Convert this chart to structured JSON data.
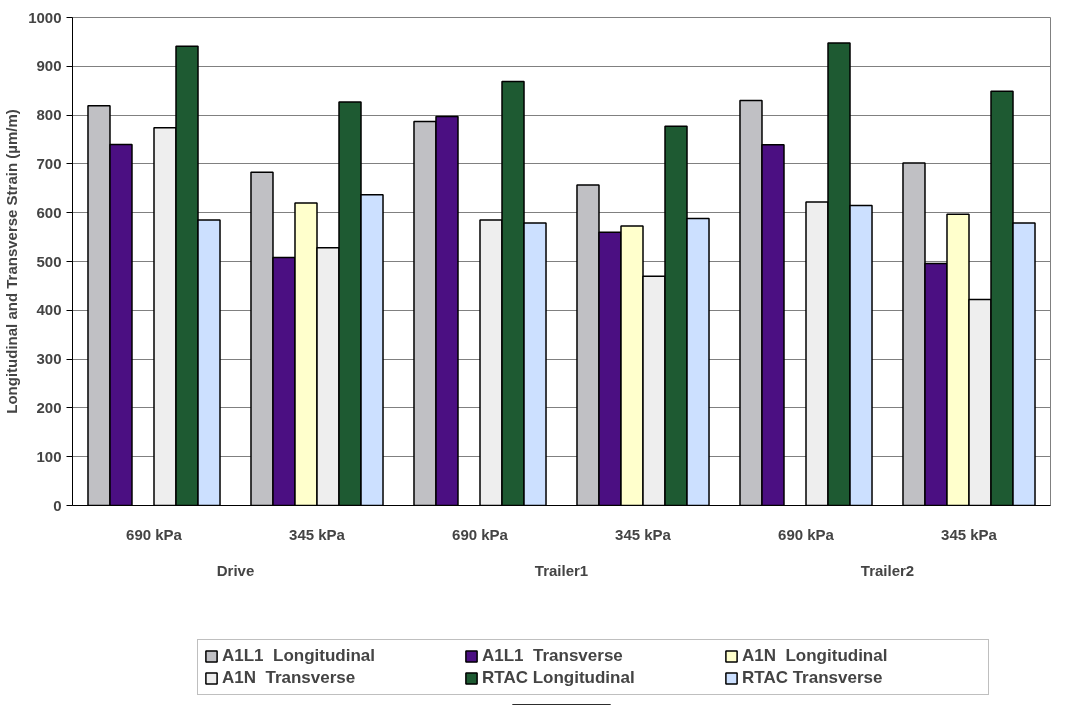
{
  "chart_data": {
    "type": "bar",
    "ylabel": "Longitudinal and Transverse Strain (µm/m)",
    "categories": [
      "690 kPa",
      "345 kPa",
      "690 kPa",
      "345 kPa",
      "690 kPa",
      "345 kPa"
    ],
    "annotations": [
      "Drive",
      "Trailer1",
      "Trailer2"
    ],
    "ylim": [
      0,
      1000
    ],
    "yticks": [
      0,
      100,
      200,
      300,
      400,
      500,
      600,
      700,
      800,
      900,
      1000
    ],
    "grid": "y",
    "legend": "bottom",
    "series": [
      {
        "name": "A1L1  Longitudinal",
        "color": "#c0c0c4",
        "values": [
          819,
          683,
          787,
          657,
          830,
          702
        ]
      },
      {
        "name": "A1L1  Transverse",
        "color": "#4b0f82",
        "values": [
          740,
          508,
          797,
          560,
          739,
          496
        ]
      },
      {
        "name": "A1N  Longitudinal",
        "color": "#ffffcc",
        "values": [
          null,
          620,
          null,
          573,
          null,
          597
        ]
      },
      {
        "name": "A1N  Transverse",
        "color": "#eeeeee",
        "values": [
          774,
          528,
          585,
          470,
          622,
          422
        ]
      },
      {
        "name": "RTAC Longitudinal",
        "color": "#1e5a32",
        "values": [
          941,
          827,
          869,
          777,
          948,
          849
        ]
      },
      {
        "name": "RTAC Transverse",
        "color": "#cce0ff",
        "values": [
          585,
          637,
          579,
          588,
          615,
          579
        ]
      }
    ]
  }
}
